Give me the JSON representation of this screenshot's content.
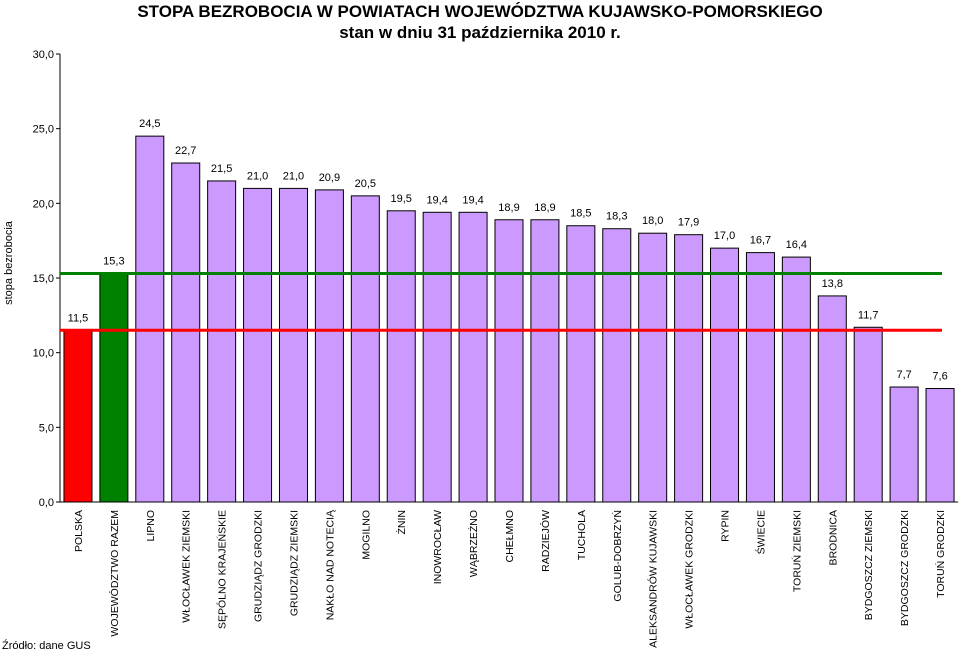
{
  "chart_data": {
    "type": "bar",
    "title": "STOPA BEZROBOCIA W POWIATACH WOJEWÓDZTWA KUJAWSKO-POMORSKIEGO",
    "subtitle": "stan w dniu 31 października 2010 r.",
    "ylabel": "stopa bezrobocia",
    "xlabel": "",
    "ylim": [
      0,
      30
    ],
    "yticks": [
      "0,0",
      "5,0",
      "10,0",
      "15,0",
      "20,0",
      "25,0",
      "30,0"
    ],
    "grid": false,
    "categories": [
      "POLSKA",
      "WOJEWÓDZTWO RAZEM",
      "LIPNO",
      "WŁOCŁAWEK ZIEMSKI",
      "SĘPÓLNO KRAJEŃSKIE",
      "GRUDZIĄDZ GRODZKI",
      "GRUDZIĄDZ ZIEMSKI",
      "NAKŁO NAD NOTECIĄ",
      "MOGILNO",
      "ŻNIN",
      "INOWROCŁAW",
      "WĄBRZEŹNO",
      "CHEŁMNO",
      "RADZIEJÓW",
      "TUCHOLA",
      "GOLUB-DOBRZYŃ",
      "ALEKSANDRÓW KUJAWSKI",
      "WŁOCŁAWEK GRODZKI",
      "RYPIN",
      "ŚWIECIE",
      "TORUŃ ZIEMSKI",
      "BRODNICA",
      "BYDGOSZCZ ZIEMSKI",
      "BYDGOSZCZ GRODZKI",
      "TORUŃ GRODZKI"
    ],
    "values": [
      11.5,
      15.3,
      24.5,
      22.7,
      21.5,
      21.0,
      21.0,
      20.9,
      20.5,
      19.5,
      19.4,
      19.4,
      18.9,
      18.9,
      18.5,
      18.3,
      18.0,
      17.9,
      17.0,
      16.7,
      16.4,
      13.8,
      11.7,
      7.7,
      7.6
    ],
    "value_labels": [
      "11,5",
      "15,3",
      "24,5",
      "22,7",
      "21,5",
      "21,0",
      "21,0",
      "20,9",
      "20,5",
      "19,5",
      "19,4",
      "19,4",
      "18,9",
      "18,9",
      "18,5",
      "18,3",
      "18,0",
      "17,9",
      "17,0",
      "16,7",
      "16,4",
      "13,8",
      "11,7",
      "7,7",
      "7,6"
    ],
    "bar_colors": [
      "#ff0000",
      "#008000",
      "#cc99ff",
      "#cc99ff",
      "#cc99ff",
      "#cc99ff",
      "#cc99ff",
      "#cc99ff",
      "#cc99ff",
      "#cc99ff",
      "#cc99ff",
      "#cc99ff",
      "#cc99ff",
      "#cc99ff",
      "#cc99ff",
      "#cc99ff",
      "#cc99ff",
      "#cc99ff",
      "#cc99ff",
      "#cc99ff",
      "#cc99ff",
      "#cc99ff",
      "#cc99ff",
      "#cc99ff",
      "#cc99ff"
    ],
    "reference_lines": [
      {
        "value": 15.3,
        "color": "#008000"
      },
      {
        "value": 11.5,
        "color": "#ff0000"
      }
    ]
  },
  "source": "Źródło: dane GUS"
}
